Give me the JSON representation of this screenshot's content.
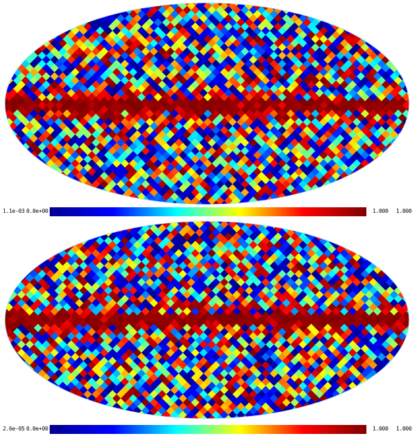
{
  "maps": [
    {
      "colorbar_labels": {
        "left_min": "1.1e-03",
        "left_zero": "0.0e+00",
        "right_max": "1.000",
        "right_end": "1.000"
      }
    },
    {
      "colorbar_labels": {
        "left_min": "2.6e-05",
        "left_zero": "0.0e+00",
        "right_max": "1.000",
        "right_end": "1.000"
      }
    }
  ],
  "colormap": [
    "#00008f",
    "#0000ff",
    "#00ffff",
    "#ffff00",
    "#ff0000",
    "#800000"
  ]
}
